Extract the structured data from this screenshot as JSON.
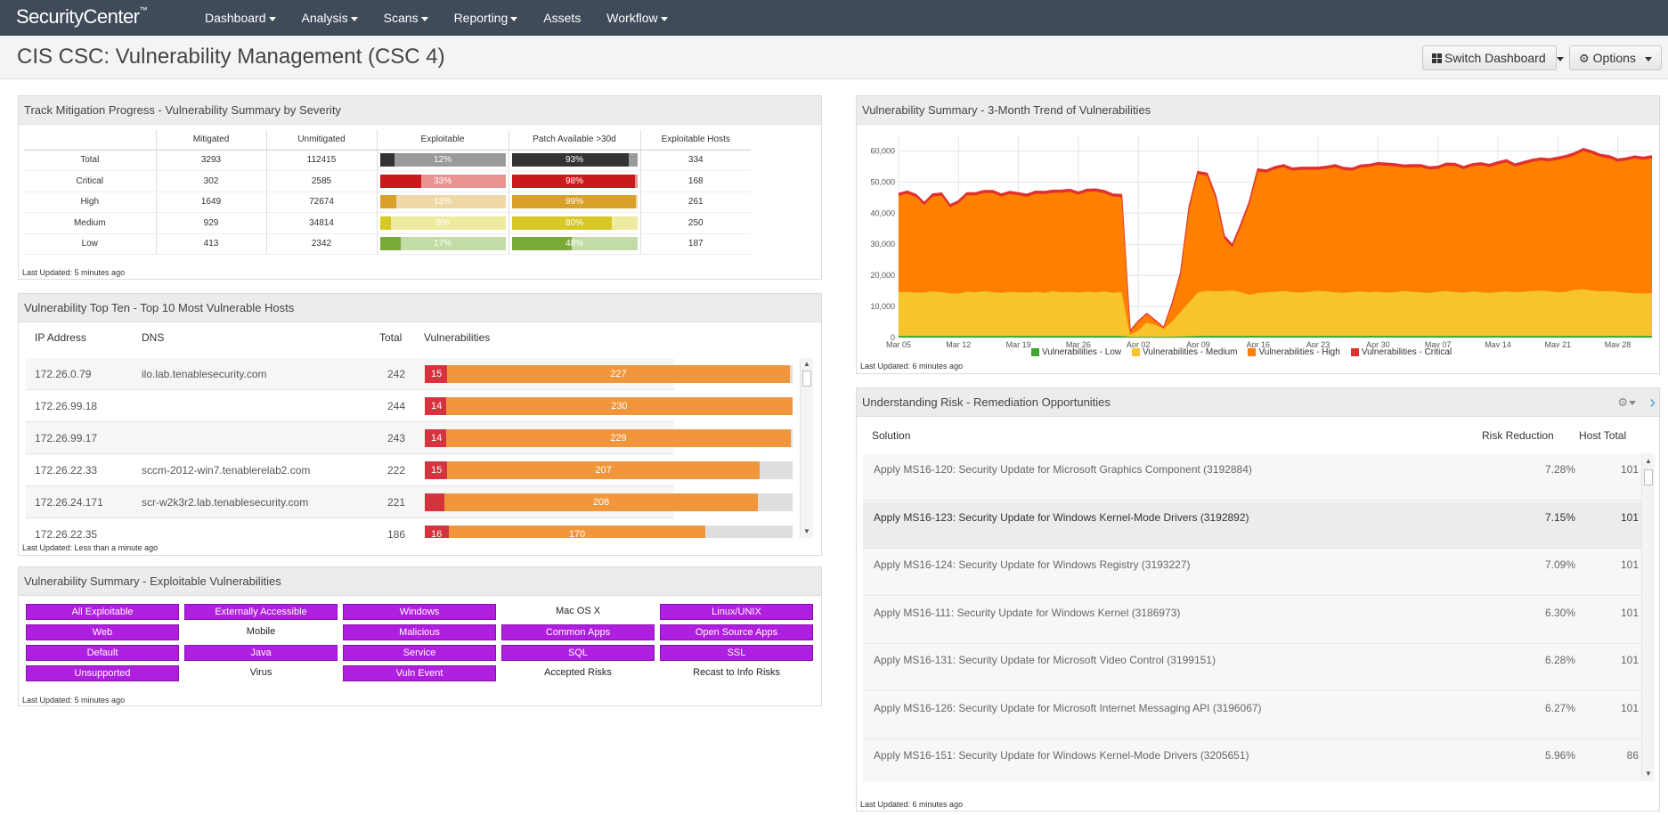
{
  "app": {
    "logo": "SecurityCenter",
    "logo_tm": "™"
  },
  "nav": [
    {
      "label": "Dashboard",
      "caret": true
    },
    {
      "label": "Analysis",
      "caret": true
    },
    {
      "label": "Scans",
      "caret": true
    },
    {
      "label": "Reporting",
      "caret": true
    },
    {
      "label": "Assets",
      "caret": false
    },
    {
      "label": "Workflow",
      "caret": true
    }
  ],
  "header": {
    "title": "CIS CSC: Vulnerability Management (CSC 4)",
    "switch_label": "Switch Dashboard",
    "options_label": "Options"
  },
  "mitigation": {
    "title": "Track Mitigation Progress - Vulnerability Summary by Severity",
    "columns": [
      "",
      "Mitigated",
      "Unmitigated",
      "Exploitable",
      "Patch Available >30d",
      "Exploitable Hosts"
    ],
    "rows": [
      {
        "label": "Total",
        "mitigated": "3293",
        "unmitigated": "112415",
        "exploitable": "12%",
        "exploitable_frac": 0.12,
        "patch": "93%",
        "patch_frac": 0.93,
        "hosts": "334",
        "dark": "#333333",
        "light": "#9a9a9a",
        "text_color": "#ffffff"
      },
      {
        "label": "Critical",
        "mitigated": "302",
        "unmitigated": "2585",
        "exploitable": "33%",
        "exploitable_frac": 0.33,
        "patch": "98%",
        "patch_frac": 0.98,
        "hosts": "168",
        "dark": "#c81a1a",
        "light": "#e99393",
        "text_color": "#ffffff"
      },
      {
        "label": "High",
        "mitigated": "1649",
        "unmitigated": "72674",
        "exploitable": "13%",
        "exploitable_frac": 0.13,
        "patch": "99%",
        "patch_frac": 0.99,
        "hosts": "261",
        "dark": "#d9a02a",
        "light": "#eed8a6",
        "text_color": "#ffffff"
      },
      {
        "label": "Medium",
        "mitigated": "929",
        "unmitigated": "34814",
        "exploitable": "9%",
        "exploitable_frac": 0.09,
        "patch": "80%",
        "patch_frac": 0.8,
        "hosts": "250",
        "dark": "#d8c825",
        "light": "#eeeaa0",
        "text_color": "#ffffff"
      },
      {
        "label": "Low",
        "mitigated": "413",
        "unmitigated": "2342",
        "exploitable": "17%",
        "exploitable_frac": 0.17,
        "patch": "48%",
        "patch_frac": 0.48,
        "hosts": "187",
        "dark": "#7aab37",
        "light": "#c3dba5",
        "text_color": "#ffffff"
      }
    ],
    "updated": "Last Updated: 5 minutes ago"
  },
  "hosts": {
    "title": "Vulnerability Top Ten - Top 10 Most Vulnerable Hosts",
    "columns": {
      "ip": "IP Address",
      "dns": "DNS",
      "total": "Total",
      "vulns": "Vulnerabilities"
    },
    "max_total": 244,
    "rows": [
      {
        "ip": "172.26.0.79",
        "dns": "ilo.lab.tenablesecurity.com",
        "total": "242",
        "crit": "15",
        "high": "227"
      },
      {
        "ip": "172.26.99.18",
        "dns": "",
        "total": "244",
        "crit": "14",
        "high": "230"
      },
      {
        "ip": "172.26.99.17",
        "dns": "",
        "total": "243",
        "crit": "14",
        "high": "229"
      },
      {
        "ip": "172.26.22.33",
        "dns": "sccm-2012-win7.tenablerelab2.com",
        "total": "222",
        "crit": "15",
        "high": "207"
      },
      {
        "ip": "172.26.24.171",
        "dns": "scr-w2k3r2.lab.tenablesecurity.com",
        "total": "221",
        "crit": "",
        "crit_value": 13,
        "high": "208"
      },
      {
        "ip": "172.26.22.35",
        "dns": "",
        "total": "186",
        "crit": "16",
        "high": "170"
      }
    ],
    "updated": "Last Updated: Less than a minute ago"
  },
  "exploitable": {
    "title": "Vulnerability Summary - Exploitable Vulnerabilities",
    "cells": [
      {
        "label": "All Exploitable",
        "on": true
      },
      {
        "label": "Externally Accessible",
        "on": true
      },
      {
        "label": "Windows",
        "on": true
      },
      {
        "label": "Mac OS X",
        "on": false
      },
      {
        "label": "Linux/UNIX",
        "on": true
      },
      {
        "label": "Web",
        "on": true
      },
      {
        "label": "Mobile",
        "on": false
      },
      {
        "label": "Malicious",
        "on": true
      },
      {
        "label": "Common Apps",
        "on": true
      },
      {
        "label": "Open Source Apps",
        "on": true
      },
      {
        "label": "Default",
        "on": true
      },
      {
        "label": "Java",
        "on": true
      },
      {
        "label": "Service",
        "on": true
      },
      {
        "label": "SQL",
        "on": true
      },
      {
        "label": "SSL",
        "on": true
      },
      {
        "label": "Unsupported",
        "on": true
      },
      {
        "label": "Virus",
        "on": false
      },
      {
        "label": "Vuln Event",
        "on": true
      },
      {
        "label": "Accepted Risks",
        "on": false
      },
      {
        "label": "Recast to Info Risks",
        "on": false
      }
    ],
    "updated": "Last Updated: 5 minutes ago"
  },
  "trend": {
    "title": "Vulnerability Summary - 3-Month Trend of Vulnerabilities",
    "updated": "Last Updated: 6 minutes ago"
  },
  "chart_data": {
    "type": "area",
    "ylim": [
      0,
      65000
    ],
    "y_ticks": [
      "0",
      "10,000",
      "20,000",
      "30,000",
      "40,000",
      "50,000",
      "60,000"
    ],
    "x_ticks": [
      "Mar 05",
      "Mar 12",
      "Mar 19",
      "Mar 26",
      "Apr 02",
      "Apr 09",
      "Apr 16",
      "Apr 23",
      "Apr 30",
      "May 07",
      "May 14",
      "May 21",
      "May 28"
    ],
    "x_start": "Mar 05",
    "x_days": 88,
    "legend_position": "bottom",
    "series": [
      {
        "name": "Vulnerabilities - Low",
        "color": "#3ca832",
        "values": [
          400,
          400,
          400,
          400,
          400,
          400,
          400,
          400,
          400,
          400,
          400,
          400,
          400,
          400,
          400,
          400,
          400,
          400,
          400,
          400,
          400,
          400,
          400,
          400,
          400,
          400,
          400,
          100,
          100,
          100,
          100,
          100,
          100,
          200,
          300,
          400,
          400,
          400,
          400,
          400,
          400,
          400,
          400,
          400,
          400,
          400,
          400,
          400,
          400,
          400,
          400,
          400,
          400,
          400,
          400,
          400,
          400,
          400,
          400,
          400,
          400,
          400,
          400,
          400,
          400,
          400,
          400,
          400,
          400,
          400,
          400,
          400,
          400,
          400,
          400,
          400,
          400,
          400,
          400,
          400,
          400,
          400,
          400,
          400,
          400,
          400,
          400,
          400,
          400
        ]
      },
      {
        "name": "Vulnerabilities - Medium",
        "color": "#f7c42c",
        "values": [
          14000,
          14200,
          13900,
          14000,
          14300,
          14100,
          13700,
          13600,
          14200,
          14000,
          14400,
          14100,
          13800,
          14200,
          14000,
          13900,
          14200,
          13800,
          14400,
          14000,
          14100,
          13900,
          14200,
          14000,
          14300,
          13800,
          14100,
          600,
          2000,
          4500,
          3800,
          2500,
          5000,
          8000,
          11000,
          14000,
          14500,
          14300,
          14400,
          14600,
          14000,
          13200,
          13800,
          14000,
          14200,
          14400,
          14100,
          13900,
          14200,
          14500,
          14300,
          14000,
          13800,
          14100,
          14300,
          14000,
          14200,
          13900,
          14100,
          14400,
          14200,
          14000,
          13800,
          14200,
          14400,
          14100,
          13900,
          14300,
          14000,
          13800,
          14100,
          14300,
          14000,
          14200,
          14400,
          14600,
          14300,
          14000,
          14200,
          14800,
          15000,
          14600,
          14300,
          14400,
          14200,
          13900,
          13700,
          13600,
          13800
        ]
      },
      {
        "name": "Vulnerabilities - High",
        "color": "#ff8000",
        "values": [
          31000,
          31500,
          30800,
          28000,
          30500,
          31000,
          27600,
          29000,
          31000,
          31200,
          31500,
          31800,
          31000,
          31400,
          31200,
          30800,
          31500,
          31800,
          31600,
          32000,
          32200,
          31500,
          32100,
          32400,
          31600,
          31000,
          30500,
          800,
          2800,
          2700,
          1200,
          200,
          5400,
          12000,
          30000,
          38000,
          37000,
          30000,
          17000,
          13800,
          21000,
          29000,
          39000,
          38500,
          39400,
          39800,
          39000,
          39500,
          39200,
          38900,
          39400,
          40200,
          39500,
          39000,
          39800,
          40300,
          40700,
          40800,
          40400,
          39700,
          40000,
          40200,
          39700,
          39500,
          40300,
          40500,
          39700,
          40200,
          40800,
          40500,
          41000,
          41500,
          40400,
          41000,
          41500,
          41800,
          41800,
          42600,
          43000,
          43300,
          44400,
          44000,
          43200,
          42700,
          41800,
          42500,
          43300,
          43000,
          43300
        ]
      },
      {
        "name": "Vulnerabilities - Critical",
        "color": "#e0312f",
        "values": [
          800,
          800,
          800,
          800,
          800,
          800,
          800,
          800,
          800,
          800,
          800,
          800,
          800,
          800,
          800,
          800,
          800,
          800,
          800,
          800,
          800,
          800,
          800,
          800,
          800,
          800,
          800,
          200,
          200,
          200,
          200,
          200,
          400,
          600,
          800,
          800,
          800,
          800,
          800,
          800,
          800,
          800,
          800,
          800,
          800,
          800,
          800,
          800,
          800,
          800,
          800,
          800,
          800,
          800,
          800,
          800,
          800,
          800,
          800,
          800,
          800,
          800,
          800,
          800,
          800,
          800,
          800,
          800,
          800,
          800,
          800,
          800,
          800,
          800,
          800,
          800,
          800,
          800,
          800,
          800,
          800,
          800,
          800,
          800,
          800,
          800,
          800,
          800,
          800
        ]
      }
    ]
  },
  "remediation": {
    "title": "Understanding Risk - Remediation Opportunities",
    "columns": {
      "solution": "Solution",
      "risk": "Risk Reduction",
      "hosts": "Host Total"
    },
    "rows": [
      {
        "solution": "Apply MS16-120: Security Update for Microsoft Graphics Component (3192884)",
        "risk": "7.28%",
        "hosts": "101"
      },
      {
        "solution": "Apply MS16-123: Security Update for Windows Kernel-Mode Drivers (3192892)",
        "risk": "7.15%",
        "hosts": "101"
      },
      {
        "solution": "Apply MS16-124: Security Update for Windows Registry (3193227)",
        "risk": "7.09%",
        "hosts": "101"
      },
      {
        "solution": "Apply MS16-111: Security Update for Windows Kernel (3186973)",
        "risk": "6.30%",
        "hosts": "101"
      },
      {
        "solution": "Apply MS16-131: Security Update for Microsoft Video Control (3199151)",
        "risk": "6.28%",
        "hosts": "101"
      },
      {
        "solution": "Apply MS16-126: Security Update for Microsoft Internet Messaging API (3196067)",
        "risk": "6.27%",
        "hosts": "101"
      },
      {
        "solution": "Apply MS16-151: Security Update for Windows Kernel-Mode Drivers (3205651)",
        "risk": "5.96%",
        "hosts": "86"
      }
    ],
    "updated": "Last Updated: 6 minutes ago"
  }
}
